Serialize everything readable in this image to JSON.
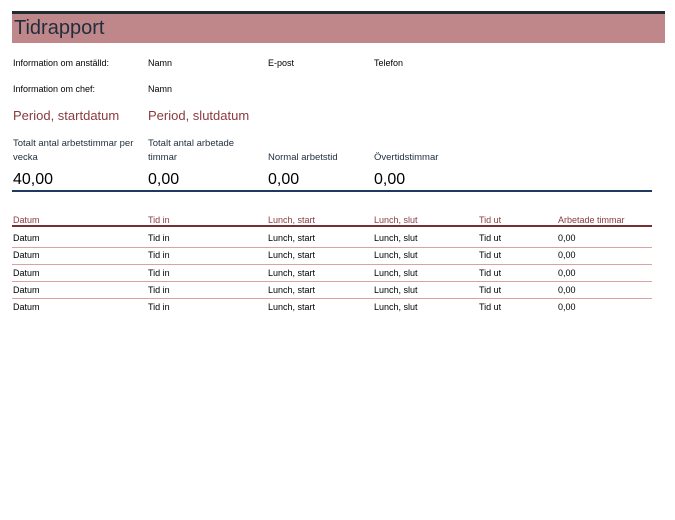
{
  "title": "Tidrapport",
  "employee": {
    "label": "Information om anställd:",
    "name": "Namn",
    "email": "E-post",
    "phone": "Telefon"
  },
  "manager": {
    "label": "Information om chef:",
    "name": "Namn"
  },
  "period": {
    "start": "Period, startdatum",
    "end": "Period, slutdatum"
  },
  "summary": [
    {
      "label": "Totalt antal arbetstimmar per vecka",
      "value": "40,00"
    },
    {
      "label": "Totalt antal arbetade timmar",
      "value": "0,00"
    },
    {
      "label": "Normal arbetstid",
      "value": "0,00"
    },
    {
      "label": "Övertidstimmar",
      "value": "0,00"
    }
  ],
  "table": {
    "columns": [
      "Datum",
      "Tid in",
      "Lunch, start",
      "Lunch, slut",
      "Tid ut",
      "Arbetade timmar"
    ],
    "rows": [
      [
        "Datum",
        "Tid in",
        "Lunch, start",
        "Lunch, slut",
        "Tid ut",
        "0,00"
      ],
      [
        "Datum",
        "Tid in",
        "Lunch, start",
        "Lunch, slut",
        "Tid ut",
        "0,00"
      ],
      [
        "Datum",
        "Tid in",
        "Lunch, start",
        "Lunch, slut",
        "Tid ut",
        "0,00"
      ],
      [
        "Datum",
        "Tid in",
        "Lunch, start",
        "Lunch, slut",
        "Tid ut",
        "0,00"
      ],
      [
        "Datum",
        "Tid in",
        "Lunch, start",
        "Lunch, slut",
        "Tid ut",
        "0,00"
      ]
    ]
  }
}
